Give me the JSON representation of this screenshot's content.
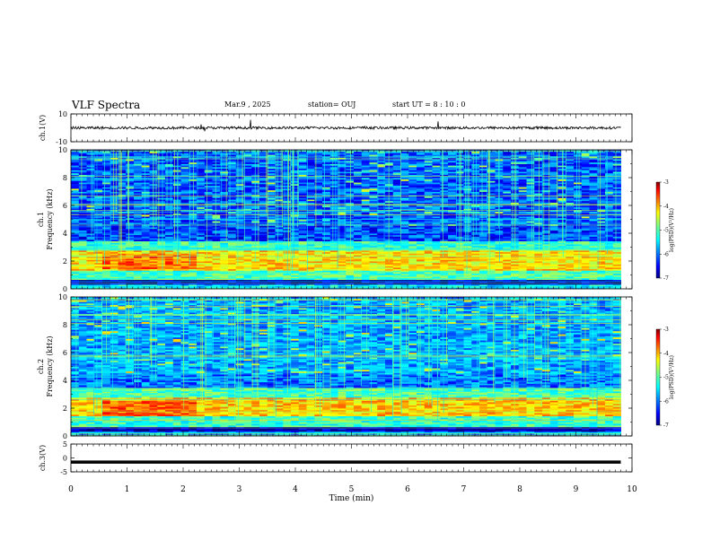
{
  "header": {
    "title": "VLF Spectra",
    "date": "Mar.9 , 2025",
    "station": "station= OUJ",
    "start": "start UT = 8 : 10 : 0"
  },
  "colors": {
    "colormap": [
      "#00007f",
      "#0000ff",
      "#00a0ff",
      "#00ffff",
      "#7fff7f",
      "#ffff00",
      "#ff7f00",
      "#ff0000",
      "#7f0000"
    ],
    "axes": "#000000",
    "background": "#ffffff"
  },
  "chart_data": [
    {
      "type": "line",
      "panel": "ch1-waveform",
      "ylabel": "ch.1(V)",
      "ylim": [
        -10,
        10
      ],
      "yticks": [
        "10",
        "-10"
      ],
      "xlim": [
        0,
        10
      ],
      "description_values": {
        "trace_center_V": 0,
        "trace_half_amplitude_V": 0.9
      }
    },
    {
      "type": "heatmap",
      "panel": "ch1-spectrogram",
      "ylabel": "ch.1 Frequency (kHz)",
      "ylim": [
        0,
        10
      ],
      "yticks": [
        "0",
        "2",
        "4",
        "6",
        "8",
        "10"
      ],
      "xlim": [
        0,
        9.8
      ],
      "colorbar": {
        "label": "log(PSD)(V²/Hz)",
        "ticks": [
          "-3",
          "-4",
          "-5",
          "-6",
          "-7"
        ],
        "range": [
          -7,
          -3
        ]
      },
      "bands_kHz_log_psd": [
        {
          "f_lo": 0.0,
          "f_hi": 0.3,
          "level": -5.6
        },
        {
          "f_lo": 0.3,
          "f_hi": 0.7,
          "level": -6.8
        },
        {
          "f_lo": 0.7,
          "f_hi": 1.3,
          "level": -5.2
        },
        {
          "f_lo": 1.3,
          "f_hi": 2.8,
          "level": -4.4
        },
        {
          "f_lo": 2.8,
          "f_hi": 3.4,
          "level": -5.3
        },
        {
          "f_lo": 3.4,
          "f_hi": 4.6,
          "level": -6.3
        },
        {
          "f_lo": 4.6,
          "f_hi": 10.0,
          "level": -6.2
        }
      ]
    },
    {
      "type": "heatmap",
      "panel": "ch2-spectrogram",
      "ylabel": "ch.2 Frequency (kHz)",
      "ylim": [
        0,
        10
      ],
      "yticks": [
        "0",
        "2",
        "4",
        "6",
        "8",
        "10"
      ],
      "xlim": [
        0,
        9.8
      ],
      "colorbar": {
        "label": "log(PSD)(V²/Hz)",
        "ticks": [
          "-3",
          "-4",
          "-5",
          "-6",
          "-7"
        ],
        "range": [
          -7,
          -3
        ]
      },
      "bands_kHz_log_psd": [
        {
          "f_lo": 0.0,
          "f_hi": 0.3,
          "level": -6.0
        },
        {
          "f_lo": 0.3,
          "f_hi": 0.7,
          "level": -6.8
        },
        {
          "f_lo": 0.7,
          "f_hi": 1.4,
          "level": -5.3
        },
        {
          "f_lo": 1.4,
          "f_hi": 2.8,
          "level": -4.3
        },
        {
          "f_lo": 2.8,
          "f_hi": 3.5,
          "level": -5.2
        },
        {
          "f_lo": 3.5,
          "f_hi": 4.4,
          "level": -6.1
        },
        {
          "f_lo": 4.4,
          "f_hi": 10.0,
          "level": -5.9
        }
      ]
    },
    {
      "type": "line",
      "panel": "ch3-waveform",
      "ylabel": "ch.3(V)",
      "ylim": [
        -5,
        5
      ],
      "yticks": [
        "5",
        "0",
        "-5"
      ],
      "xlim": [
        0,
        10
      ],
      "description_values": {
        "trace_level_V": -1.5
      }
    }
  ],
  "x_axis": {
    "label": "Time (min)",
    "ticks": [
      "0",
      "1",
      "2",
      "3",
      "4",
      "5",
      "6",
      "7",
      "8",
      "9",
      "10"
    ]
  }
}
